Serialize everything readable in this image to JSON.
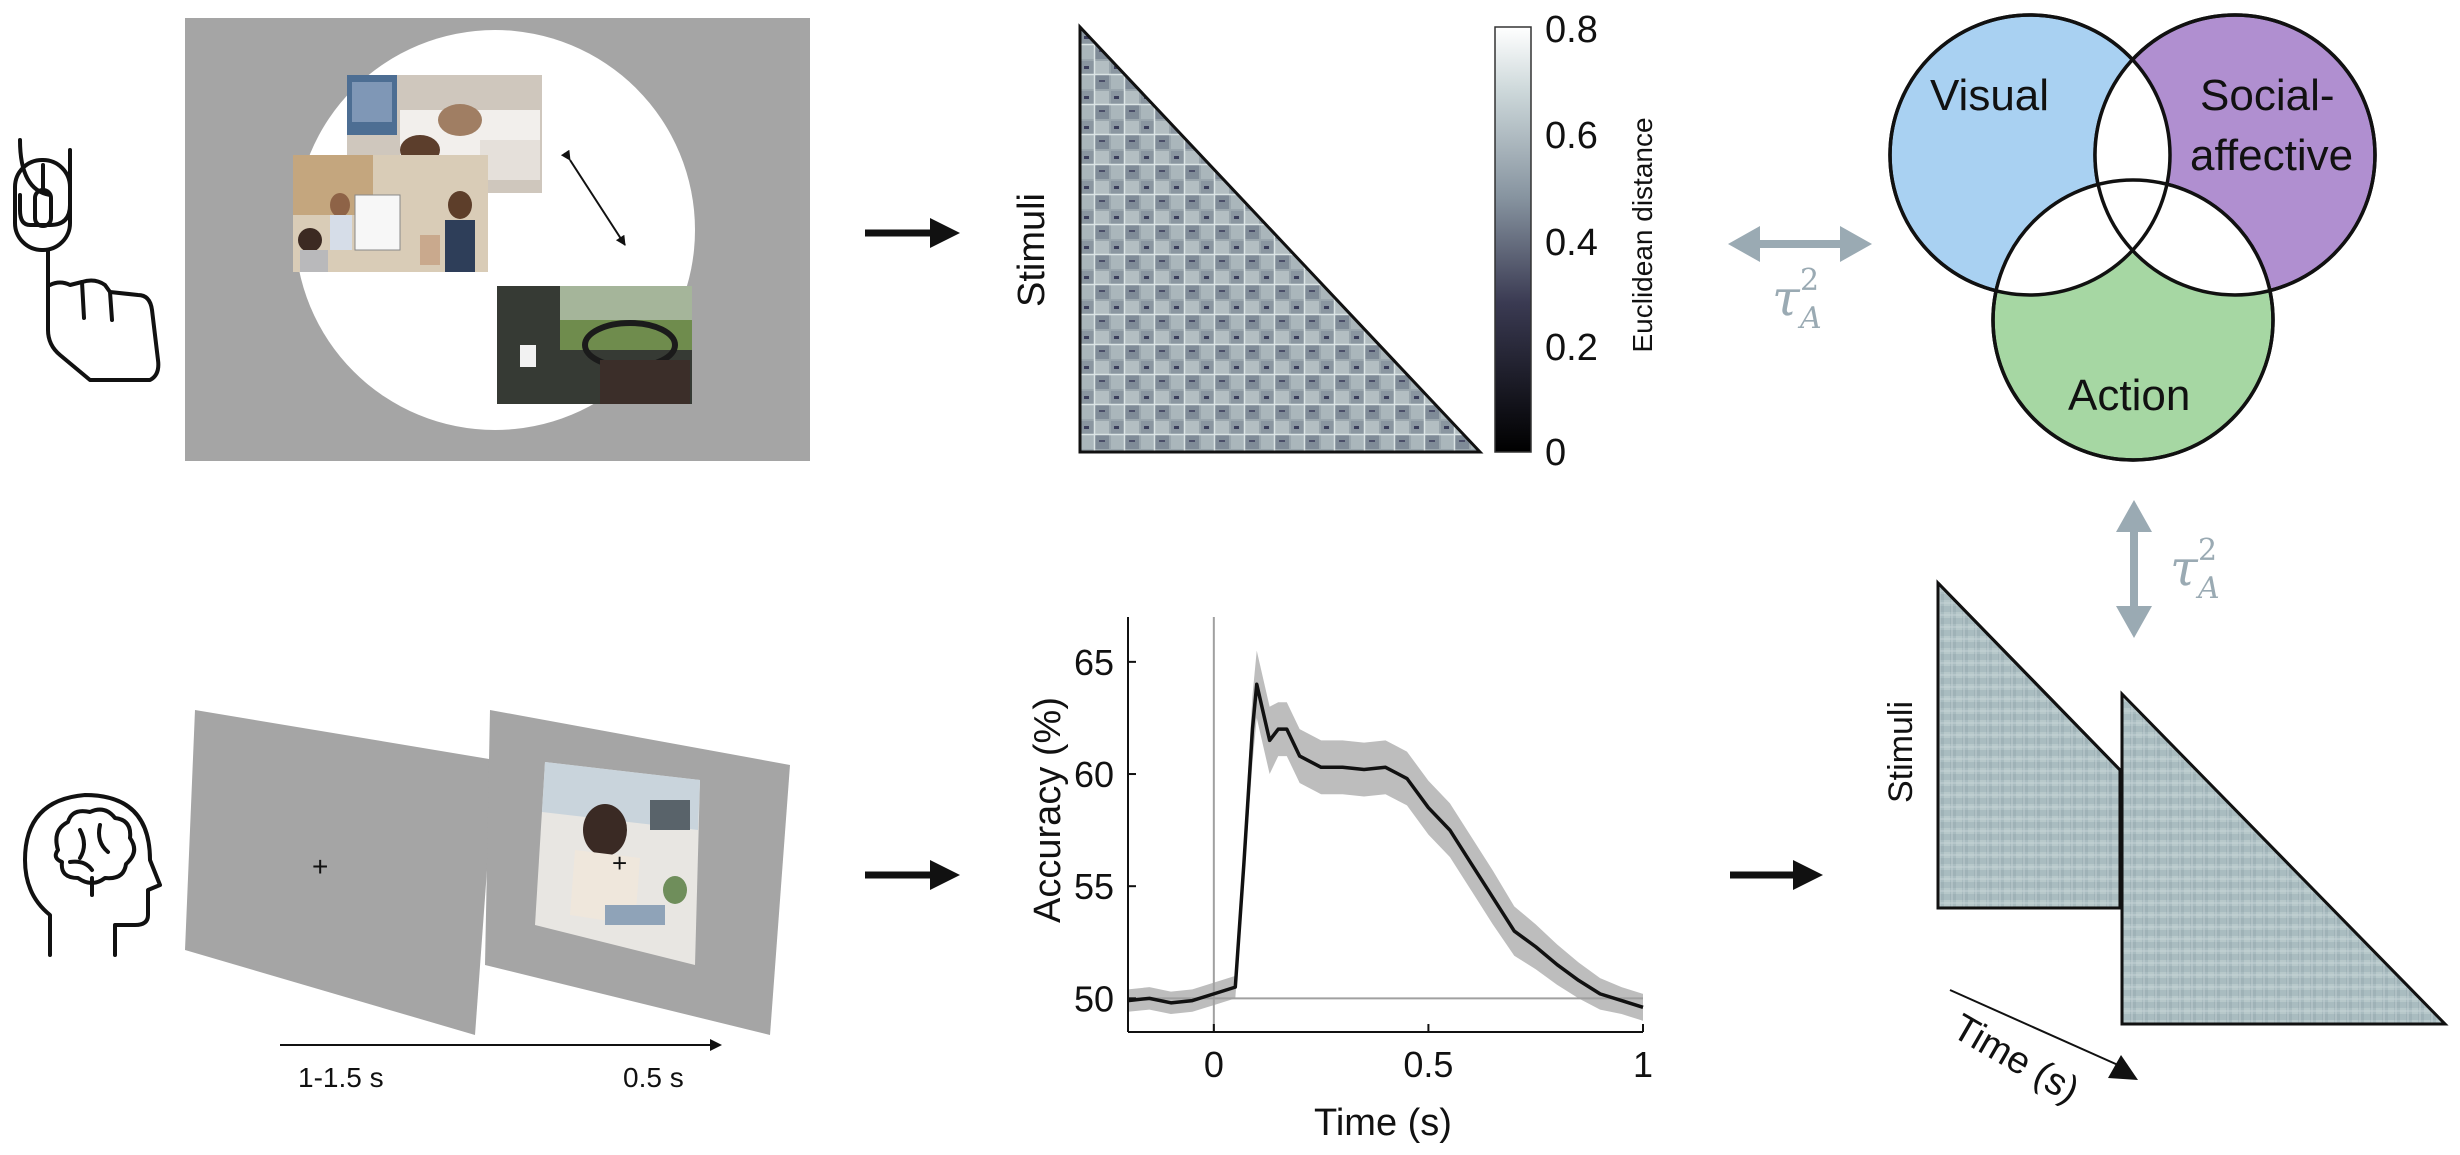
{
  "arrangement_task": {
    "icon": "mouse-click-icon"
  },
  "rdm_top": {
    "ylabel": "Stimuli",
    "colorbar": {
      "label": "Euclidean distance",
      "ticks": [
        "0.8",
        "0.6",
        "0.4",
        "0.2",
        "0"
      ]
    }
  },
  "venn": {
    "circles": [
      "Visual",
      "Social-",
      "affective",
      "Action"
    ],
    "colors": {
      "visual": "#a9d1f2",
      "social": "#b08fd0",
      "action": "#a6d7a3"
    }
  },
  "tau": {
    "symbol": "τ",
    "superscript": "2",
    "subscript": "A",
    "color": "#9aaab3"
  },
  "eeg_task": {
    "icon": "brain-head-icon",
    "timeline": {
      "first": "1-1.5 s",
      "second": "0.5 s"
    }
  },
  "accuracy_chart": {
    "ytick_labels": [
      "65",
      "60",
      "55",
      "50"
    ],
    "xtick_labels": [
      "0",
      "0.5",
      "1"
    ]
  },
  "rdm_bottom": {
    "ylabel": "Stimuli",
    "time_label": "Time (s)"
  },
  "chart_data": {
    "type": "line",
    "xlabel": "Time (s)",
    "ylabel": "Accuracy (%)",
    "xlim": [
      -0.2,
      1.0
    ],
    "ylim": [
      48.5,
      67
    ],
    "chance_level": 50,
    "x": [
      -0.2,
      -0.15,
      -0.1,
      -0.05,
      0.0,
      0.05,
      0.07,
      0.09,
      0.1,
      0.13,
      0.15,
      0.17,
      0.2,
      0.25,
      0.3,
      0.35,
      0.4,
      0.45,
      0.5,
      0.55,
      0.6,
      0.65,
      0.7,
      0.75,
      0.8,
      0.85,
      0.9,
      0.95,
      1.0
    ],
    "series": [
      {
        "mean": [
          49.9,
          50.0,
          49.8,
          49.9,
          50.2,
          50.5,
          56.0,
          62.0,
          64.0,
          61.5,
          62.0,
          62.0,
          60.8,
          60.3,
          60.3,
          60.2,
          60.3,
          59.8,
          58.5,
          57.5,
          56.0,
          54.5,
          53.0,
          52.3,
          51.5,
          50.8,
          50.2,
          49.9,
          49.6
        ],
        "upper": [
          50.4,
          50.5,
          50.3,
          50.4,
          50.7,
          51.0,
          56.8,
          63.5,
          65.5,
          63.0,
          63.2,
          63.2,
          62.0,
          61.5,
          61.5,
          61.4,
          61.5,
          61.0,
          59.7,
          58.7,
          57.2,
          55.7,
          54.1,
          53.3,
          52.4,
          51.6,
          50.9,
          50.5,
          50.2
        ],
        "lower": [
          49.4,
          49.5,
          49.3,
          49.4,
          49.7,
          50.0,
          55.2,
          60.5,
          62.5,
          60.0,
          60.8,
          60.8,
          59.6,
          59.1,
          59.1,
          59.0,
          59.1,
          58.6,
          57.3,
          56.3,
          54.8,
          53.3,
          51.9,
          51.3,
          50.6,
          50.0,
          49.5,
          49.3,
          49.0
        ]
      }
    ]
  }
}
